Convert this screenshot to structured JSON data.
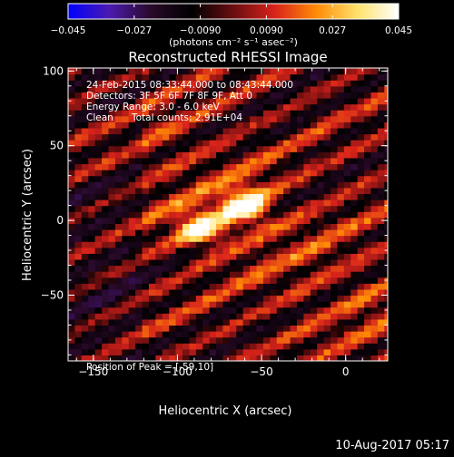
{
  "colorbar": {
    "ticks": [
      "-0.045",
      "-0.027",
      "-0.0090",
      "0.0090",
      "0.027",
      "0.045"
    ],
    "unit_label": "(photons cm⁻² s⁻¹ asec⁻²)",
    "colors": [
      "#0000ff",
      "#4b1ab0",
      "#2a0a2a",
      "#000000",
      "#6a0e10",
      "#d8231b",
      "#ff8a06",
      "#ffe26a",
      "#ffffff"
    ]
  },
  "image_info": {
    "time_range": "24-Feb-2015 08:33:44.000 to 08:43:44.000",
    "detectors": "Detectors: 3F 5F 6F 7F 8F 9F, Att 0",
    "energy_range": "Energy Range: 3.0 - 6.0 keV",
    "method": "Clean",
    "total_counts": "Total counts: 2.91E+04",
    "peak_position": "Position of Peak = [-59,10]"
  },
  "footer": {
    "timestamp": "10-Aug-2017 05:17"
  },
  "chart_data": {
    "type": "heatmap",
    "title": "Reconstructed RHESSI Image",
    "xlabel": "Heliocentric X (arcsec)",
    "ylabel": "Heliocentric Y (arcsec)",
    "xlim": [
      -165,
      25
    ],
    "ylim": [
      -94,
      102
    ],
    "xticks": [
      -150,
      -100,
      -50,
      0
    ],
    "yticks": [
      -50,
      0,
      50,
      100
    ],
    "xtick_labels": [
      "−150",
      "−100",
      "−50",
      "0"
    ],
    "ytick_labels": [
      "−50",
      "0",
      "50",
      "100"
    ],
    "colorbar_range": [
      -0.045,
      0.045
    ],
    "peak": {
      "x": -59,
      "y": 10
    },
    "sources": [
      {
        "x": -59,
        "y": 10,
        "peak_value": 0.045
      },
      {
        "x": -86,
        "y": -5,
        "peak_value": 0.04
      }
    ]
  }
}
